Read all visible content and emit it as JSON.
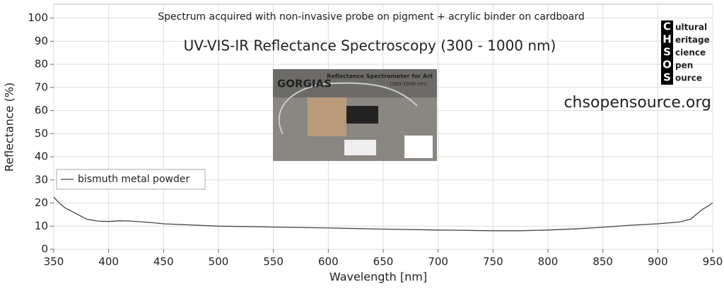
{
  "chart_data": {
    "type": "line",
    "subtitle": "Spectrum acquired with non-invasive probe on pigment + acrylic binder on cardboard",
    "title": "UV-VIS-IR Reflectance Spectroscopy (300 - 1000 nm)",
    "website": "chsopensource.org",
    "logo": {
      "letters": [
        "C",
        "H",
        "S",
        "O",
        "S"
      ],
      "words": [
        "ultural",
        "eritage",
        "cience",
        "pen",
        "ource"
      ]
    },
    "inset": {
      "title": "GORGIAS",
      "caption": "Reflectance Spectrometer for Art",
      "range": "(300-1000 nm)"
    },
    "x_label": "Wavelength [nm]",
    "y_label": "Reflectance (%)",
    "x": [
      350,
      355,
      360,
      370,
      380,
      390,
      400,
      410,
      420,
      440,
      450,
      475,
      500,
      550,
      600,
      650,
      700,
      750,
      775,
      800,
      825,
      850,
      875,
      900,
      920,
      930,
      940,
      950
    ],
    "series": [
      {
        "name": "bismuth metal powder",
        "color": "#444444",
        "values": [
          22.5,
          20,
          18,
          15.5,
          13,
          12.2,
          12,
          12.3,
          12.2,
          11.5,
          11,
          10.5,
          10,
          9.6,
          9.2,
          8.7,
          8.3,
          8,
          8,
          8.3,
          8.8,
          9.5,
          10.4,
          11,
          11.8,
          13,
          17,
          20
        ]
      }
    ],
    "xlim": [
      350,
      950
    ],
    "xticks": [
      350,
      400,
      450,
      500,
      550,
      600,
      650,
      700,
      750,
      800,
      850,
      900,
      950
    ],
    "ylim": [
      0,
      106
    ],
    "yticks": [
      0,
      10,
      20,
      30,
      40,
      50,
      60,
      70,
      80,
      90,
      100
    ],
    "grid": true,
    "legend": "upper-left"
  }
}
